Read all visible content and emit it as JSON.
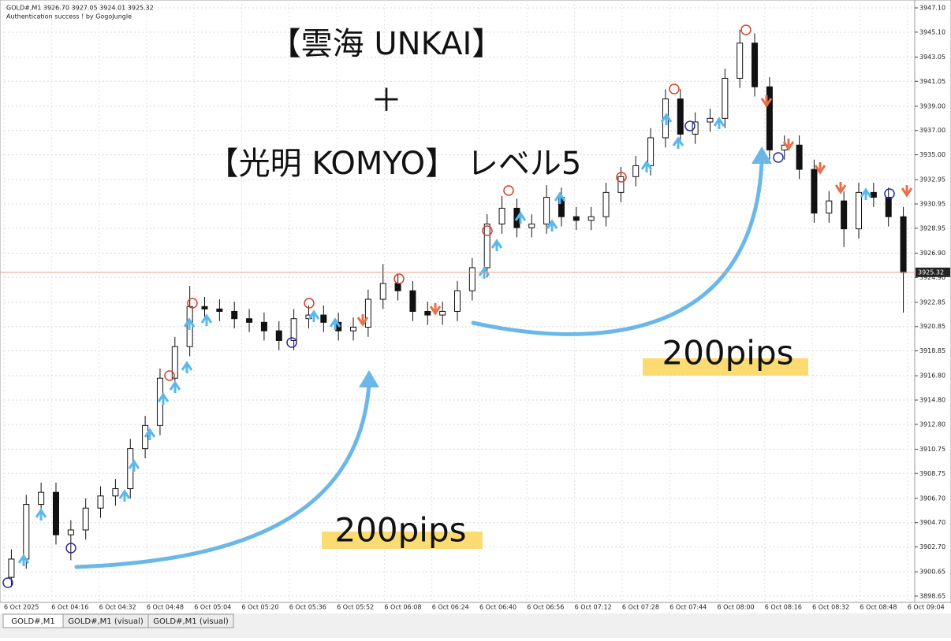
{
  "chart_data": {
    "type": "candlestick",
    "header": "GOLD#,M1  3926.70 3927.05 3924.01 3925.32",
    "subtitle": "Authentication success ! by GogoJungle",
    "annotations": [
      "【雲海 UNKAI】",
      "＋",
      "【光明 KOMYO】 レベル5",
      "200pips",
      "200pips"
    ],
    "categories": [
      "6 Oct 2025",
      "6 Oct 04:16",
      "6 Oct 04:32",
      "6 Oct 04:48",
      "6 Oct 05:04",
      "6 Oct 05:20",
      "6 Oct 05:36",
      "6 Oct 05:52",
      "6 Oct 06:08",
      "6 Oct 06:24",
      "6 Oct 06:40",
      "6 Oct 06:56",
      "6 Oct 07:12",
      "6 Oct 07:28",
      "6 Oct 07:44",
      "6 Oct 08:00",
      "6 Oct 08:16",
      "6 Oct 08:32",
      "6 Oct 08:48",
      "6 Oct 09:04"
    ],
    "open": [
      3900.2,
      3901.7,
      3906.2,
      3907.2,
      3903.7,
      3904.1,
      3905.9,
      3906.9,
      3907.5,
      3910.8,
      3912.7,
      3916.6,
      3919.2,
      3922.5,
      3922.3,
      3922.1,
      3921.5,
      3921.2,
      3920.5,
      3919.7,
      3921.5,
      3921.8,
      3921.2,
      3920.5,
      3920.8,
      3923.1,
      3924.4,
      3923.8,
      3922.1,
      3921.8,
      3922.1,
      3923.8,
      3925.7,
      3929.3,
      3930.6,
      3929.0,
      3929.3,
      3931.5,
      3929.9,
      3929.6,
      3929.9,
      3931.9,
      3933.2,
      3934.1,
      3936.4,
      3939.6,
      3936.7,
      3937.7,
      3938.0,
      3941.3,
      3944.2,
      3940.6,
      3935.4,
      3935.8,
      3933.8,
      3930.2,
      3931.2,
      3928.9,
      3931.9,
      3931.5,
      3929.9
    ],
    "high": [
      3902.5,
      3907.0,
      3908.0,
      3908.0,
      3904.9,
      3906.7,
      3907.7,
      3908.3,
      3911.6,
      3913.5,
      3917.4,
      3920.0,
      3924.2,
      3923.3,
      3923.1,
      3922.9,
      3922.3,
      3922.0,
      3921.3,
      3922.3,
      3922.6,
      3922.6,
      3922.0,
      3921.6,
      3923.9,
      3926.0,
      3925.2,
      3924.6,
      3922.9,
      3922.9,
      3924.6,
      3926.5,
      3930.1,
      3931.6,
      3931.4,
      3930.1,
      3932.5,
      3932.3,
      3930.7,
      3930.7,
      3932.7,
      3934.0,
      3934.9,
      3937.2,
      3940.4,
      3940.4,
      3938.5,
      3938.8,
      3942.1,
      3945.3,
      3945.0,
      3941.4,
      3936.6,
      3936.6,
      3934.6,
      3932.0,
      3932.0,
      3932.7,
      3932.7,
      3932.3,
      3930.7
    ],
    "low": [
      3899.4,
      3900.9,
      3905.4,
      3902.9,
      3901.6,
      3903.3,
      3905.1,
      3906.1,
      3906.7,
      3910.0,
      3911.9,
      3915.8,
      3918.4,
      3921.5,
      3921.3,
      3920.7,
      3920.4,
      3919.7,
      3918.9,
      3918.9,
      3920.7,
      3920.4,
      3919.7,
      3919.7,
      3920.0,
      3922.3,
      3923.0,
      3921.3,
      3921.0,
      3921.0,
      3921.3,
      3923.0,
      3924.9,
      3928.5,
      3928.2,
      3928.2,
      3928.5,
      3929.1,
      3928.8,
      3928.8,
      3929.1,
      3931.1,
      3932.4,
      3933.3,
      3935.6,
      3935.9,
      3935.9,
      3936.9,
      3937.2,
      3940.5,
      3939.8,
      3934.6,
      3934.6,
      3933.0,
      3929.4,
      3929.4,
      3927.4,
      3928.1,
      3930.7,
      3929.1,
      3922.0
    ],
    "close": [
      3901.7,
      3906.2,
      3907.2,
      3903.7,
      3904.1,
      3905.9,
      3906.9,
      3907.5,
      3910.8,
      3912.7,
      3916.6,
      3919.2,
      3922.5,
      3922.3,
      3922.1,
      3921.5,
      3921.2,
      3920.5,
      3919.7,
      3921.5,
      3921.8,
      3921.2,
      3920.5,
      3920.8,
      3923.1,
      3924.4,
      3923.8,
      3922.1,
      3921.8,
      3922.1,
      3923.8,
      3925.7,
      3929.3,
      3930.6,
      3929.0,
      3929.3,
      3931.5,
      3929.9,
      3929.6,
      3929.9,
      3931.9,
      3933.2,
      3934.1,
      3936.4,
      3939.6,
      3936.7,
      3937.7,
      3938.0,
      3941.3,
      3944.2,
      3940.6,
      3935.4,
      3935.8,
      3933.8,
      3930.2,
      3931.2,
      3928.9,
      3931.9,
      3931.5,
      3929.9,
      3925.3
    ],
    "current_price": 3925.32,
    "ylim": [
      3898.13,
      3947.75
    ],
    "yticks": [
      {
        "value": 3947.1,
        "label": "3947.10"
      },
      {
        "value": 3945.1,
        "label": "3945.10"
      },
      3943.05,
      3941.05,
      {
        "value": 3939,
        "label": "3939.00"
      },
      {
        "value": 3937,
        "label": "3937.00"
      },
      {
        "value": 3935,
        "label": "3935.00"
      },
      3932.95,
      3930.95,
      3928.95,
      {
        "value": 3926.9,
        "label": "3926.90"
      },
      {
        "value": 3924.9,
        "label": "3924.90"
      },
      3922.85,
      3920.85,
      3918.85,
      {
        "value": 3916.8,
        "label": "3916.80"
      },
      {
        "value": 3914.8,
        "label": "3914.80"
      },
      {
        "value": 3912.8,
        "label": "3912.80"
      },
      3910.75,
      3908.75,
      {
        "value": 3906.7,
        "label": "3906.70"
      },
      {
        "value": 3904.7,
        "label": "3904.70"
      },
      {
        "value": 3902.7,
        "label": "3902.70"
      },
      3900.65,
      3898.65
    ],
    "grid": true
  },
  "tabs": [
    "GOLD#,M1",
    "GOLD#,M1 (visual)",
    "GOLD#,M1 (visual)"
  ]
}
